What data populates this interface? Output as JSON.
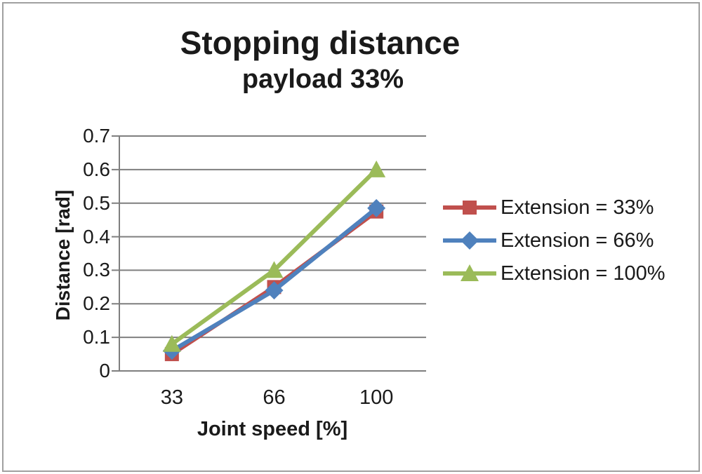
{
  "chart_data": {
    "type": "line",
    "title": "Stopping distance",
    "subtitle": "payload 33%",
    "xlabel": "Joint speed [%]",
    "ylabel": "Distance [rad]",
    "categories": [
      "33",
      "66",
      "100"
    ],
    "ylim": [
      0,
      0.7
    ],
    "yticks": [
      "0",
      "0.1",
      "0.2",
      "0.3",
      "0.4",
      "0.5",
      "0.6",
      "0.7"
    ],
    "grid": true,
    "legend_position": "right",
    "series": [
      {
        "name": "Extension = 33%",
        "color": "#C0504D",
        "marker": "square",
        "values": [
          0.05,
          0.25,
          0.475
        ]
      },
      {
        "name": "Extension = 66%",
        "color": "#4F81BD",
        "marker": "diamond",
        "values": [
          0.06,
          0.24,
          0.485
        ]
      },
      {
        "name": "Extension = 100%",
        "color": "#9BBB59",
        "marker": "triangle",
        "values": [
          0.08,
          0.3,
          0.6
        ]
      }
    ]
  },
  "colors": {
    "grid": "#7f7f7f",
    "axis": "#7f7f7f",
    "text": "#1a1a1a",
    "frame_border": "#a0a0a0"
  }
}
